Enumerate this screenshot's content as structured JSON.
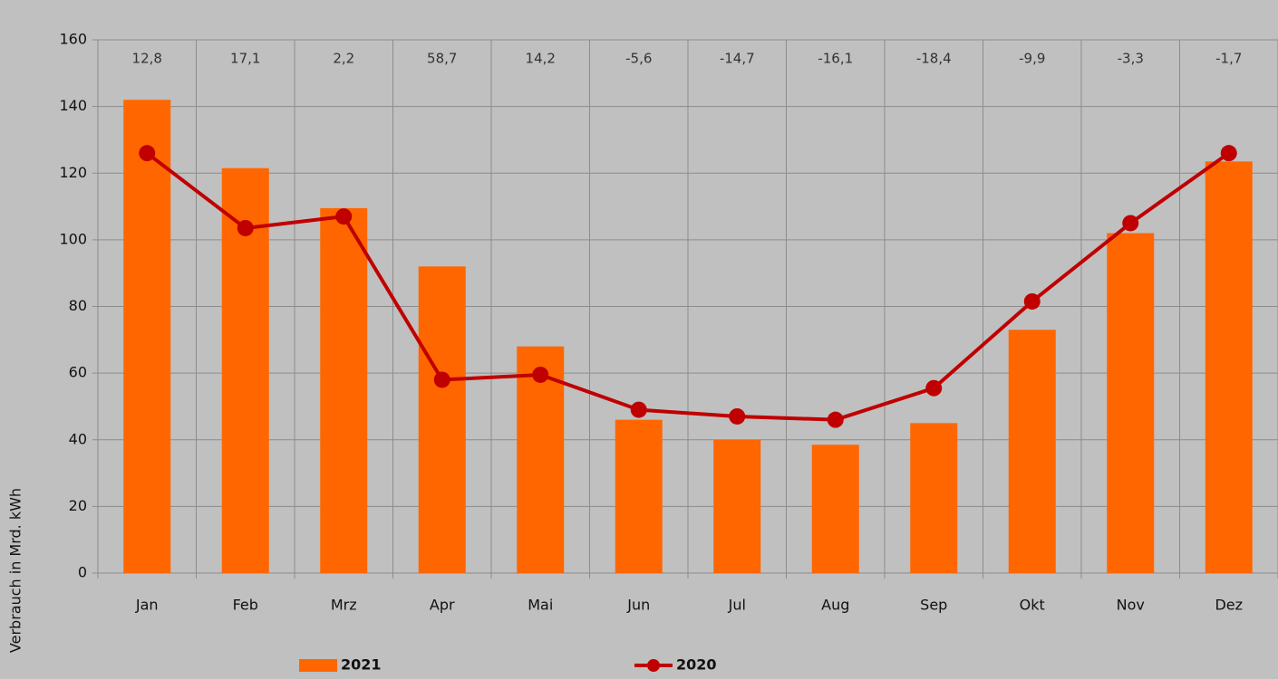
{
  "chart_data": {
    "type": "bar_line",
    "y_axis_label": "Verbrauch in Mrd. kWh",
    "categories": [
      "Jan",
      "Feb",
      "Mrz",
      "Apr",
      "Mai",
      "Jun",
      "Jul",
      "Aug",
      "Sep",
      "Okt",
      "Nov",
      "Dez"
    ],
    "series": [
      {
        "name": "2021",
        "type": "bar",
        "color": "#ff6600",
        "values": [
          142,
          121.5,
          109.5,
          92,
          68,
          46,
          40,
          38.5,
          45,
          73,
          102,
          123.5
        ]
      },
      {
        "name": "2020",
        "type": "line",
        "color": "#c00000",
        "values": [
          126,
          103.5,
          107,
          58,
          59.5,
          49,
          47,
          46,
          55.5,
          81.5,
          105,
          126
        ]
      }
    ],
    "change_labels": [
      "12,8",
      "17,1",
      "2,2",
      "58,7",
      "14,2",
      "-5,6",
      "-14,7",
      "-16,1",
      "-18,4",
      "-9,9",
      "-3,3",
      "-1,7"
    ],
    "ylim": [
      0,
      160
    ],
    "yticks": [
      0,
      20,
      40,
      60,
      80,
      100,
      120,
      140,
      160
    ],
    "grid": true
  }
}
